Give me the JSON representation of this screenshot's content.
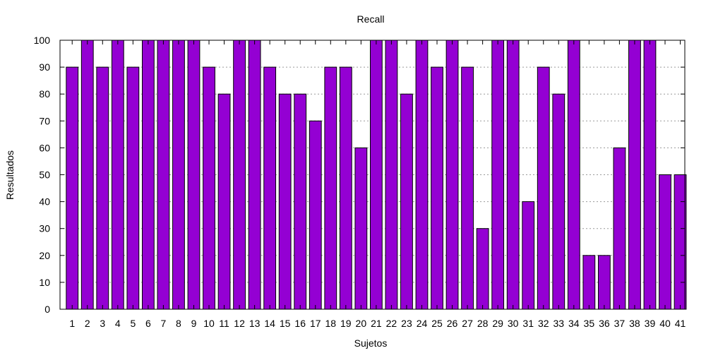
{
  "chart_data": {
    "type": "bar",
    "title": "Recall",
    "xlabel": "Sujetos",
    "ylabel": "Resultados",
    "ylim": [
      0,
      100
    ],
    "yticks": [
      0,
      10,
      20,
      30,
      40,
      50,
      60,
      70,
      80,
      90,
      100
    ],
    "grid": "horizontal dotted",
    "legend": "none",
    "bar_color": "#9400d3",
    "categories": [
      "1",
      "2",
      "3",
      "4",
      "5",
      "6",
      "7",
      "8",
      "9",
      "10",
      "11",
      "12",
      "13",
      "14",
      "15",
      "16",
      "17",
      "18",
      "19",
      "20",
      "21",
      "22",
      "23",
      "24",
      "25",
      "26",
      "27",
      "28",
      "29",
      "30",
      "31",
      "32",
      "33",
      "34",
      "35",
      "36",
      "37",
      "38",
      "39",
      "40",
      "41"
    ],
    "values": [
      90,
      100,
      90,
      100,
      90,
      100,
      100,
      100,
      100,
      90,
      80,
      100,
      100,
      90,
      80,
      80,
      70,
      90,
      90,
      60,
      100,
      100,
      80,
      100,
      90,
      100,
      90,
      30,
      100,
      100,
      40,
      90,
      80,
      100,
      20,
      20,
      60,
      100,
      100,
      50,
      50
    ]
  }
}
